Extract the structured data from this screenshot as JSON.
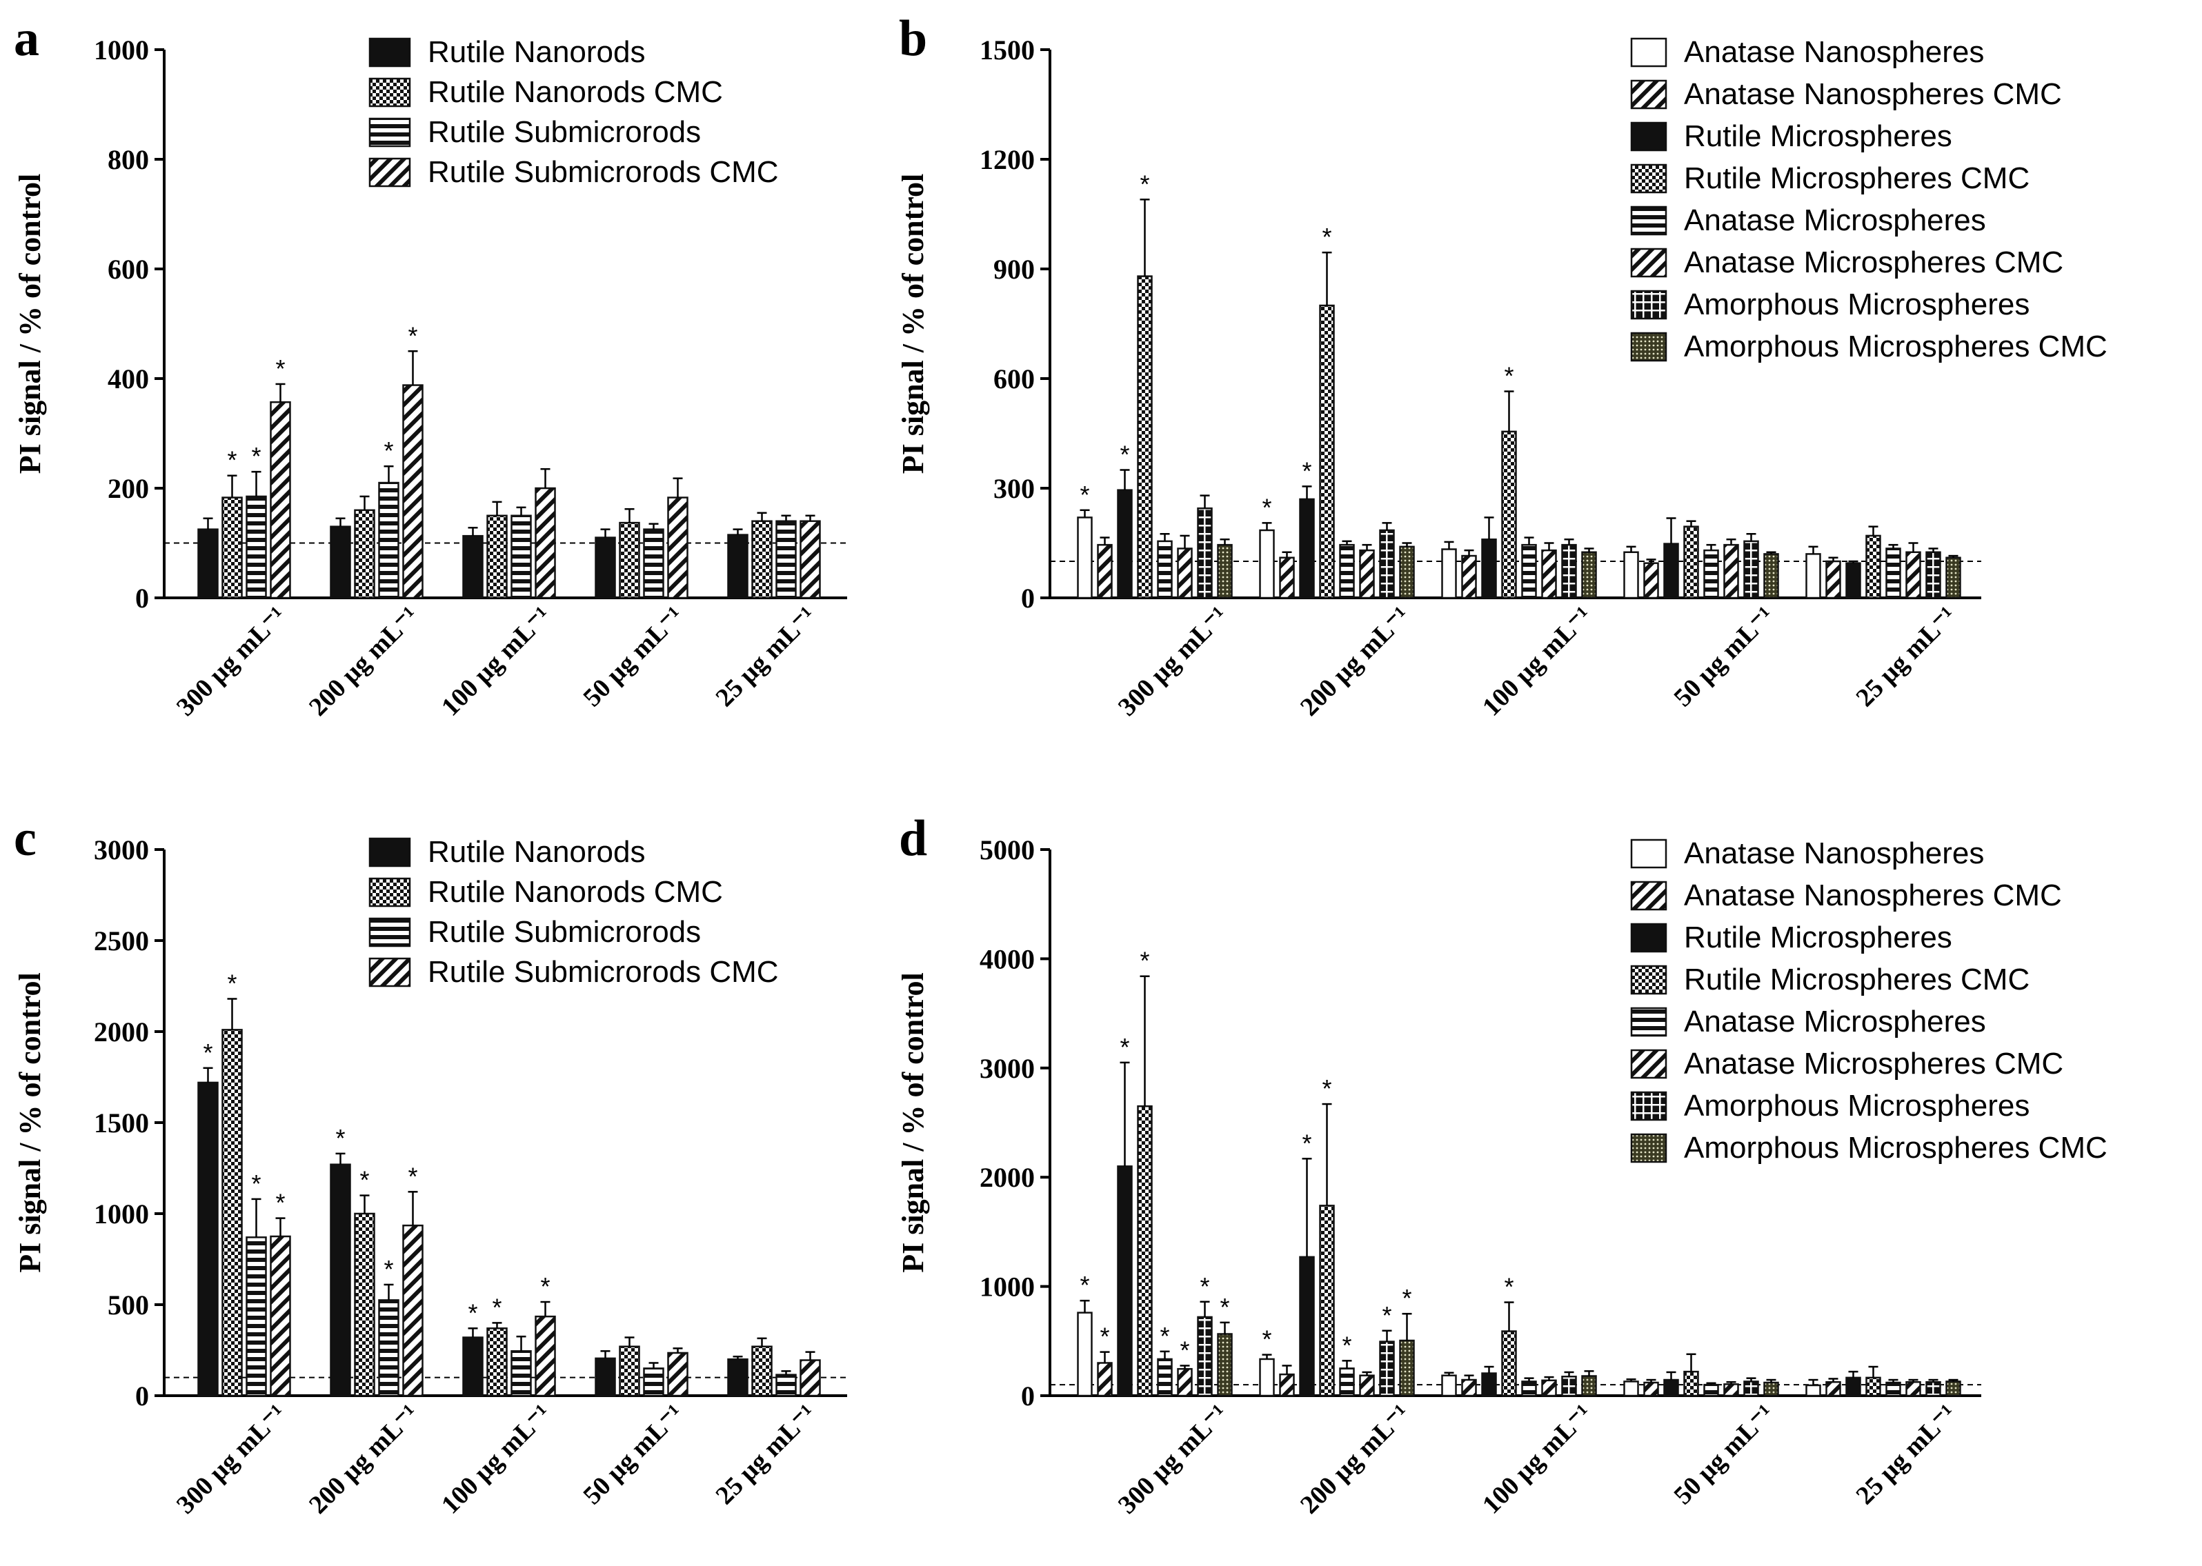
{
  "figure": {
    "ylabel": "PI signal / % of control",
    "categories": [
      "300 µg mL⁻¹",
      "200 µg mL⁻¹",
      "100 µg mL⁻¹",
      "50 µg mL⁻¹",
      "25 µg mL⁻¹"
    ]
  },
  "patterns": {
    "solid": "#111111",
    "check": "checkerboard",
    "hstripe": "horizontal-stripes",
    "diag": "diagonal-stripes",
    "open": "#ffffff",
    "grid": "grid-cross",
    "dots": "fine-dots"
  },
  "chart_data": [
    {
      "panel": "a",
      "type": "bar",
      "title": "",
      "xlabel": "",
      "ylabel": "PI signal / % of control",
      "ylim": [
        0,
        1000
      ],
      "yticks": [
        0,
        200,
        400,
        600,
        800,
        1000
      ],
      "control_line": 100,
      "legend_position": "top-right",
      "categories": [
        "300 µg mL⁻¹",
        "200 µg mL⁻¹",
        "100 µg mL⁻¹",
        "50 µg mL⁻¹",
        "25 µg mL⁻¹"
      ],
      "series": [
        {
          "name": "Rutile Nanorods",
          "pattern": "solid",
          "values": [
            125,
            130,
            113,
            110,
            115
          ],
          "errors": [
            20,
            15,
            15,
            15,
            10
          ],
          "significant": [
            false,
            false,
            false,
            false,
            false
          ]
        },
        {
          "name": "Rutile Nanorods CMC",
          "pattern": "check",
          "values": [
            183,
            160,
            150,
            137,
            140
          ],
          "errors": [
            40,
            25,
            25,
            25,
            15
          ],
          "significant": [
            true,
            false,
            false,
            false,
            false
          ]
        },
        {
          "name": "Rutile Submicrorods",
          "pattern": "hstripe",
          "values": [
            185,
            210,
            150,
            125,
            140
          ],
          "errors": [
            45,
            30,
            15,
            10,
            10
          ],
          "significant": [
            true,
            true,
            false,
            false,
            false
          ]
        },
        {
          "name": "Rutile Submicrorods CMC",
          "pattern": "diag",
          "values": [
            357,
            388,
            200,
            183,
            140
          ],
          "errors": [
            33,
            62,
            35,
            35,
            10
          ],
          "significant": [
            true,
            true,
            false,
            false,
            false
          ]
        }
      ]
    },
    {
      "panel": "b",
      "type": "bar",
      "title": "",
      "xlabel": "",
      "ylabel": "PI signal / % of control",
      "ylim": [
        0,
        1500
      ],
      "yticks": [
        0,
        300,
        600,
        900,
        1200,
        1500
      ],
      "control_line": 100,
      "legend_position": "top-right",
      "categories": [
        "300 µg mL⁻¹",
        "200 µg mL⁻¹",
        "100 µg mL⁻¹",
        "50 µg mL⁻¹",
        "25 µg mL⁻¹"
      ],
      "series": [
        {
          "name": "Anatase Nanospheres",
          "pattern": "open",
          "values": [
            220,
            185,
            133,
            125,
            120
          ],
          "errors": [
            20,
            20,
            20,
            15,
            20
          ],
          "significant": [
            true,
            true,
            false,
            false,
            false
          ]
        },
        {
          "name": "Anatase Nanospheres CMC",
          "pattern": "diag",
          "values": [
            145,
            110,
            115,
            95,
            100
          ],
          "errors": [
            20,
            15,
            15,
            10,
            10
          ],
          "significant": [
            false,
            false,
            false,
            false,
            false
          ]
        },
        {
          "name": "Rutile Microspheres",
          "pattern": "solid",
          "values": [
            295,
            270,
            160,
            148,
            95
          ],
          "errors": [
            55,
            35,
            60,
            70,
            5
          ],
          "significant": [
            true,
            true,
            false,
            false,
            false
          ]
        },
        {
          "name": "Rutile Microspheres CMC",
          "pattern": "check",
          "values": [
            880,
            800,
            455,
            195,
            170
          ],
          "errors": [
            210,
            145,
            110,
            15,
            25
          ],
          "significant": [
            true,
            true,
            true,
            false,
            false
          ]
        },
        {
          "name": "Anatase Microspheres",
          "pattern": "hstripe",
          "values": [
            155,
            145,
            145,
            130,
            135
          ],
          "errors": [
            20,
            10,
            20,
            15,
            10
          ],
          "significant": [
            false,
            false,
            false,
            false,
            false
          ]
        },
        {
          "name": "Anatase Microspheres CMC",
          "pattern": "diag",
          "values": [
            135,
            130,
            130,
            145,
            125
          ],
          "errors": [
            35,
            15,
            20,
            15,
            25
          ],
          "significant": [
            false,
            false,
            false,
            false,
            false
          ]
        },
        {
          "name": "Amorphous Microspheres",
          "pattern": "grid",
          "values": [
            245,
            185,
            145,
            155,
            125
          ],
          "errors": [
            35,
            20,
            15,
            20,
            10
          ],
          "significant": [
            false,
            false,
            false,
            false,
            false
          ]
        },
        {
          "name": "Amorphous Microspheres CMC",
          "pattern": "dots",
          "values": [
            145,
            140,
            125,
            120,
            110
          ],
          "errors": [
            15,
            10,
            10,
            5,
            5
          ],
          "significant": [
            false,
            false,
            false,
            false,
            false
          ]
        }
      ]
    },
    {
      "panel": "c",
      "type": "bar",
      "title": "",
      "xlabel": "",
      "ylabel": "PI signal / % of control",
      "ylim": [
        0,
        3000
      ],
      "yticks": [
        0,
        500,
        1000,
        1500,
        2000,
        2500,
        3000
      ],
      "control_line": 100,
      "legend_position": "top-right",
      "categories": [
        "300 µg mL⁻¹",
        "200 µg mL⁻¹",
        "100 µg mL⁻¹",
        "50 µg mL⁻¹",
        "25 µg mL⁻¹"
      ],
      "series": [
        {
          "name": "Rutile Nanorods",
          "pattern": "solid",
          "values": [
            1720,
            1270,
            320,
            205,
            200
          ],
          "errors": [
            80,
            60,
            50,
            40,
            15
          ],
          "significant": [
            true,
            true,
            true,
            false,
            false
          ]
        },
        {
          "name": "Rutile Nanorods CMC",
          "pattern": "check",
          "values": [
            2010,
            1000,
            370,
            270,
            270
          ],
          "errors": [
            170,
            100,
            30,
            50,
            45
          ],
          "significant": [
            true,
            true,
            true,
            false,
            false
          ]
        },
        {
          "name": "Rutile Submicrorods",
          "pattern": "hstripe",
          "values": [
            870,
            525,
            245,
            150,
            115
          ],
          "errors": [
            210,
            85,
            80,
            30,
            20
          ],
          "significant": [
            true,
            true,
            false,
            false,
            false
          ]
        },
        {
          "name": "Rutile Submicrorods CMC",
          "pattern": "diag",
          "values": [
            875,
            935,
            435,
            235,
            195
          ],
          "errors": [
            100,
            185,
            80,
            25,
            45
          ],
          "significant": [
            true,
            true,
            true,
            false,
            false
          ]
        }
      ]
    },
    {
      "panel": "d",
      "type": "bar",
      "title": "",
      "xlabel": "",
      "ylabel": "PI signal / % of control",
      "ylim": [
        0,
        5000
      ],
      "yticks": [
        0,
        1000,
        2000,
        3000,
        4000,
        5000
      ],
      "control_line": 100,
      "legend_position": "top-right",
      "categories": [
        "300 µg mL⁻¹",
        "200 µg mL⁻¹",
        "100 µg mL⁻¹",
        "50 µg mL⁻¹",
        "25 µg mL⁻¹"
      ],
      "series": [
        {
          "name": "Anatase Nanospheres",
          "pattern": "open",
          "values": [
            760,
            335,
            185,
            130,
            95
          ],
          "errors": [
            110,
            40,
            25,
            20,
            50
          ],
          "significant": [
            true,
            true,
            false,
            false,
            false
          ]
        },
        {
          "name": "Anatase Nanospheres CMC",
          "pattern": "diag",
          "values": [
            300,
            195,
            145,
            120,
            125
          ],
          "errors": [
            100,
            80,
            40,
            25,
            30
          ],
          "significant": [
            true,
            false,
            false,
            false,
            false
          ]
        },
        {
          "name": "Rutile Microspheres",
          "pattern": "solid",
          "values": [
            2100,
            1270,
            205,
            145,
            165
          ],
          "errors": [
            950,
            900,
            60,
            70,
            55
          ],
          "significant": [
            true,
            true,
            false,
            false,
            false
          ]
        },
        {
          "name": "Rutile Microspheres CMC",
          "pattern": "check",
          "values": [
            2650,
            1740,
            590,
            220,
            165
          ],
          "errors": [
            1190,
            930,
            265,
            160,
            100
          ],
          "significant": [
            true,
            true,
            true,
            false,
            false
          ]
        },
        {
          "name": "Anatase Microspheres",
          "pattern": "hstripe",
          "values": [
            335,
            250,
            130,
            100,
            120
          ],
          "errors": [
            70,
            70,
            30,
            15,
            25
          ],
          "significant": [
            true,
            true,
            false,
            false,
            false
          ]
        },
        {
          "name": "Anatase Microspheres CMC",
          "pattern": "diag",
          "values": [
            245,
            185,
            140,
            105,
            125
          ],
          "errors": [
            30,
            30,
            30,
            20,
            20
          ],
          "significant": [
            true,
            false,
            false,
            false,
            false
          ]
        },
        {
          "name": "Amorphous Microspheres",
          "pattern": "grid",
          "values": [
            720,
            495,
            175,
            130,
            125
          ],
          "errors": [
            140,
            100,
            40,
            30,
            20
          ],
          "significant": [
            true,
            true,
            false,
            false,
            false
          ]
        },
        {
          "name": "Amorphous Microspheres CMC",
          "pattern": "dots",
          "values": [
            565,
            505,
            180,
            120,
            130
          ],
          "errors": [
            105,
            245,
            45,
            25,
            15
          ],
          "significant": [
            true,
            true,
            false,
            false,
            false
          ]
        }
      ]
    }
  ]
}
